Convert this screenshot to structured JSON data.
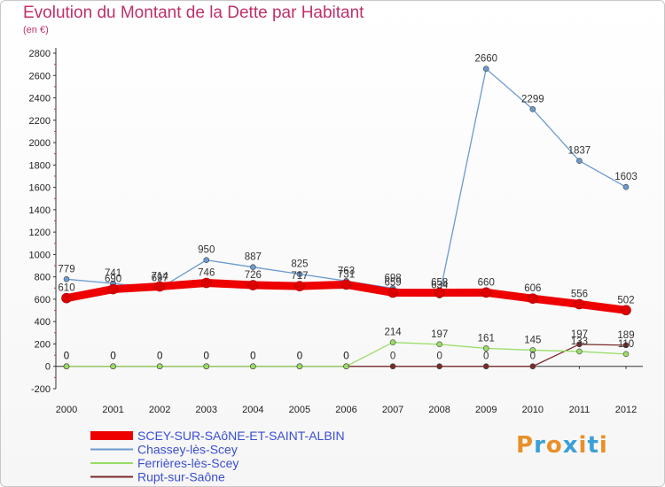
{
  "chart_data": {
    "type": "line",
    "title": "Evolution du Montant de la Dette par Habitant",
    "subtitle": "(en €)",
    "x": [
      "2000",
      "2001",
      "2002",
      "2003",
      "2004",
      "2005",
      "2006",
      "2007",
      "2008",
      "2009",
      "2010",
      "2011",
      "2012"
    ],
    "yticks": [
      -200,
      0,
      200,
      400,
      600,
      800,
      1000,
      1200,
      1400,
      1600,
      1800,
      2000,
      2200,
      2400,
      2600,
      2800
    ],
    "ylim": [
      -200,
      2800
    ],
    "grid": false,
    "legend_position": "bottom-left",
    "series": [
      {
        "name": "SCEY-SUR-SAôNE-ET-SAINT-ALBIN",
        "color": "#ee0000",
        "values": [
          610,
          690,
          714,
          746,
          726,
          717,
          731,
          659,
          658,
          660,
          606,
          556,
          502
        ]
      },
      {
        "name": "Chassey-lès-Scey",
        "color": "#6b9ad0",
        "values": [
          779,
          741,
          697,
          950,
          887,
          825,
          763,
          698,
          634,
          2660,
          2299,
          1837,
          1603
        ]
      },
      {
        "name": "Ferrières-lès-Scey",
        "color": "#99dd66",
        "values": [
          0,
          0,
          0,
          0,
          0,
          0,
          0,
          214,
          197,
          161,
          145,
          133,
          110
        ]
      },
      {
        "name": "Rupt-sur-Saône",
        "color": "#7a2a2a",
        "values": [
          0,
          0,
          0,
          0,
          0,
          0,
          0,
          0,
          0,
          0,
          0,
          197,
          189
        ]
      }
    ]
  },
  "logo": {
    "text": "Proxiti",
    "letters": [
      "P",
      "r",
      "o",
      "x",
      "i",
      "t",
      "i"
    ],
    "colors": [
      "#e8902a",
      "#3aa0d8",
      "#e8902a",
      "#3aa0d8",
      "#e8902a",
      "#3aa0d8",
      "#e8902a"
    ]
  }
}
